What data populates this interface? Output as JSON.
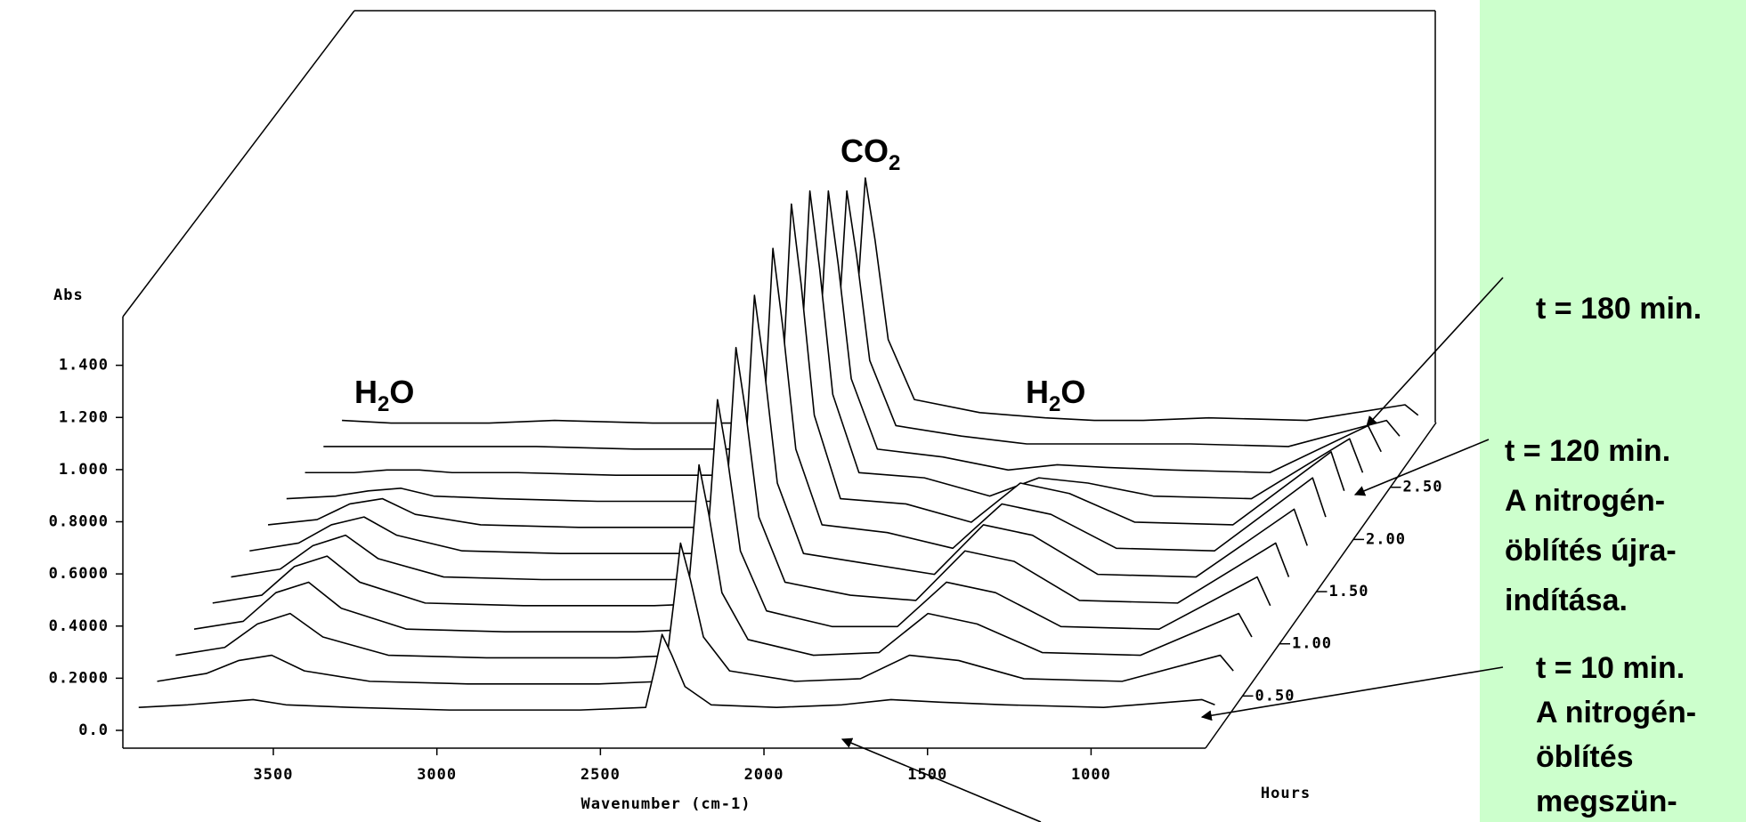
{
  "chart_data": {
    "type": "waterfall",
    "ylabel": "Abs",
    "xlabel": "Wavenumber (cm-1)",
    "zlabel": "Hours",
    "xlim": [
      3960,
      650
    ],
    "xticks": [
      3500,
      3000,
      2500,
      2000,
      1500,
      1000
    ],
    "ylim": [
      0,
      1.6
    ],
    "yticks": [
      {
        "value": 0,
        "label": "0.0"
      },
      {
        "value": 0.2,
        "label": "0.2000"
      },
      {
        "value": 0.4,
        "label": "0.4000"
      },
      {
        "value": 0.6,
        "label": "0.6000"
      },
      {
        "value": 0.8,
        "label": "0.8000"
      },
      {
        "value": 1,
        "label": "1.000"
      },
      {
        "value": 1.2,
        "label": "1.200"
      },
      {
        "value": 1.4,
        "label": "1.400"
      }
    ],
    "zlim": [
      0,
      3.12
    ],
    "zticks": [
      {
        "value": 0.5,
        "label": "0.50"
      },
      {
        "value": 1,
        "label": "1.00"
      },
      {
        "value": 1.5,
        "label": "1.50"
      },
      {
        "value": 2,
        "label": "2.00"
      },
      {
        "value": 2.5,
        "label": "2.50"
      }
    ],
    "x": [
      3950,
      3800,
      3700,
      3600,
      3500,
      3300,
      3000,
      2600,
      2400,
      2370,
      2350,
      2320,
      2280,
      2200,
      2000,
      1800,
      1650,
      1500,
      1300,
      1000,
      700,
      660
    ],
    "traces": [
      {
        "hours": 0.17,
        "values": [
          0.02,
          0.03,
          0.04,
          0.05,
          0.03,
          0.02,
          0.01,
          0.01,
          0.02,
          0.18,
          0.3,
          0.22,
          0.1,
          0.03,
          0.02,
          0.03,
          0.05,
          0.04,
          0.03,
          0.02,
          0.05,
          0.03
        ]
      },
      {
        "hours": 0.42,
        "values": [
          0.02,
          0.05,
          0.1,
          0.12,
          0.06,
          0.02,
          0.01,
          0.01,
          0.02,
          0.33,
          0.55,
          0.41,
          0.19,
          0.06,
          0.02,
          0.03,
          0.12,
          0.1,
          0.03,
          0.02,
          0.12,
          0.06
        ]
      },
      {
        "hours": 0.67,
        "values": [
          0.02,
          0.05,
          0.14,
          0.18,
          0.09,
          0.02,
          0.01,
          0.01,
          0.02,
          0.45,
          0.75,
          0.56,
          0.26,
          0.08,
          0.02,
          0.03,
          0.18,
          0.14,
          0.03,
          0.02,
          0.18,
          0.09
        ]
      },
      {
        "hours": 0.92,
        "values": [
          0.02,
          0.05,
          0.16,
          0.2,
          0.1,
          0.02,
          0.01,
          0.01,
          0.02,
          0.54,
          0.9,
          0.68,
          0.32,
          0.09,
          0.03,
          0.03,
          0.2,
          0.16,
          0.03,
          0.02,
          0.22,
          0.11
        ]
      },
      {
        "hours": 1.17,
        "values": [
          0.02,
          0.05,
          0.16,
          0.2,
          0.1,
          0.02,
          0.01,
          0.01,
          0.02,
          0.6,
          1.0,
          0.75,
          0.35,
          0.1,
          0.05,
          0.03,
          0.22,
          0.18,
          0.03,
          0.02,
          0.25,
          0.12
        ]
      },
      {
        "hours": 1.42,
        "values": [
          0.02,
          0.05,
          0.14,
          0.18,
          0.09,
          0.02,
          0.01,
          0.01,
          0.02,
          0.66,
          1.1,
          0.82,
          0.38,
          0.11,
          0.07,
          0.03,
          0.22,
          0.18,
          0.03,
          0.02,
          0.28,
          0.14
        ]
      },
      {
        "hours": 1.67,
        "values": [
          0.02,
          0.05,
          0.12,
          0.15,
          0.08,
          0.02,
          0.01,
          0.01,
          0.02,
          0.71,
          1.18,
          0.88,
          0.41,
          0.12,
          0.09,
          0.03,
          0.2,
          0.16,
          0.03,
          0.02,
          0.3,
          0.15
        ]
      },
      {
        "hours": 1.92,
        "values": [
          0.02,
          0.04,
          0.1,
          0.12,
          0.06,
          0.02,
          0.01,
          0.01,
          0.02,
          0.75,
          1.25,
          0.94,
          0.44,
          0.12,
          0.1,
          0.03,
          0.18,
          0.14,
          0.03,
          0.02,
          0.3,
          0.15
        ]
      },
      {
        "hours": 2.17,
        "values": [
          0.02,
          0.03,
          0.05,
          0.06,
          0.03,
          0.02,
          0.01,
          0.01,
          0.02,
          0.72,
          1.2,
          0.9,
          0.42,
          0.12,
          0.1,
          0.03,
          0.1,
          0.08,
          0.03,
          0.02,
          0.25,
          0.12
        ]
      },
      {
        "hours": 2.42,
        "values": [
          0.02,
          0.02,
          0.03,
          0.03,
          0.02,
          0.02,
          0.01,
          0.01,
          0.02,
          0.66,
          1.1,
          0.82,
          0.38,
          0.11,
          0.08,
          0.03,
          0.05,
          0.04,
          0.03,
          0.02,
          0.2,
          0.1
        ]
      },
      {
        "hours": 2.67,
        "values": [
          0.02,
          0.02,
          0.02,
          0.02,
          0.02,
          0.02,
          0.01,
          0.01,
          0.02,
          0.6,
          1.0,
          0.75,
          0.35,
          0.1,
          0.06,
          0.03,
          0.03,
          0.03,
          0.03,
          0.02,
          0.12,
          0.06
        ]
      },
      {
        "hours": 2.92,
        "values": [
          0.02,
          0.01,
          0.01,
          0.01,
          0.01,
          0.02,
          0.01,
          0.01,
          0.02,
          0.57,
          0.95,
          0.71,
          0.33,
          0.1,
          0.05,
          0.03,
          0.02,
          0.02,
          0.03,
          0.02,
          0.08,
          0.04
        ]
      }
    ],
    "annotations": [
      {
        "parts": [
          "CO",
          "2"
        ]
      },
      {
        "parts": [
          "H",
          "2",
          "O"
        ]
      },
      {
        "parts": [
          "H",
          "2",
          "O"
        ]
      }
    ],
    "callouts": [
      {
        "lines": [
          "t = 180 min."
        ]
      },
      {
        "lines": [
          "t = 120 min.",
          "A nitrogén-",
          "öblítés újra-",
          "indítása."
        ]
      },
      {
        "lines": [
          "t = 10 min.",
          "A nitrogén-",
          "öblítés",
          "megszün-"
        ]
      }
    ]
  }
}
